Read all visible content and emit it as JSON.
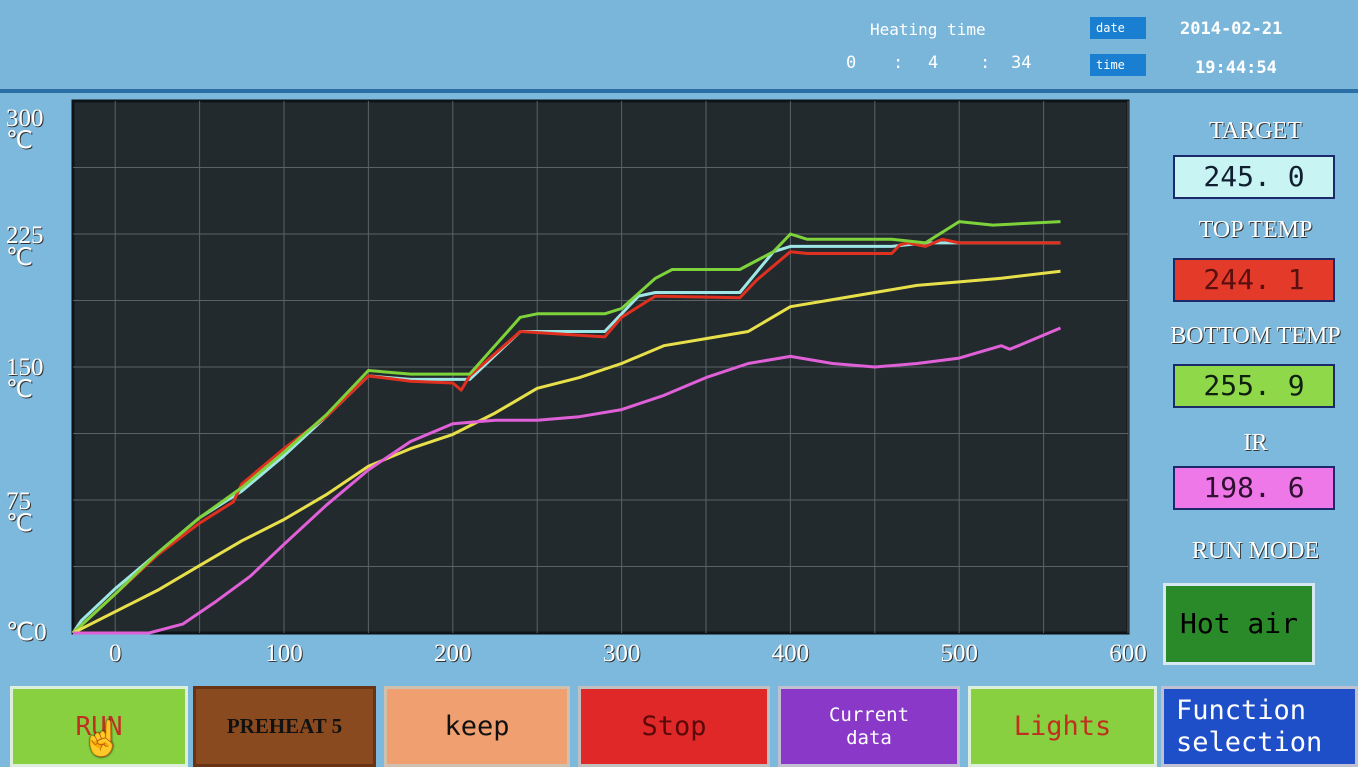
{
  "header": {
    "heating_label": "Heating time",
    "heating_h": "0",
    "heating_sep1": ":",
    "heating_m": "4",
    "heating_sep2": ":",
    "heating_s": "34",
    "date_tag": "date",
    "date_value": "2014-02-21",
    "time_tag": "time",
    "time_value": "19:44:54"
  },
  "chart_data": {
    "type": "line",
    "y_ticks": [
      {
        "label": "300",
        "unit": "℃"
      },
      {
        "label": "225",
        "unit": "℃"
      },
      {
        "label": "150",
        "unit": "℃"
      },
      {
        "label": "75",
        "unit": "℃"
      },
      {
        "label": "0",
        "unit": "℃"
      }
    ],
    "x_ticks": [
      "0",
      "100",
      "200",
      "300",
      "400",
      "500",
      "600"
    ],
    "xlim": [
      -25,
      600
    ],
    "ylim": [
      0,
      300
    ],
    "grid": true,
    "series": [
      {
        "key": "target",
        "color": "#9fe6e6",
        "x": [
          -25,
          -20,
          0,
          25,
          50,
          75,
          100,
          125,
          150,
          175,
          200,
          210,
          240,
          290,
          310,
          320,
          370,
          390,
          400,
          410,
          460,
          480,
          490,
          500,
          540,
          560
        ],
        "y": [
          0,
          7,
          25,
          45,
          65,
          80,
          100,
          122,
          145,
          143,
          143,
          143,
          170,
          170,
          190,
          192,
          192,
          215,
          218,
          218,
          218,
          220,
          220,
          220,
          220,
          220
        ]
      },
      {
        "key": "top_temp",
        "color": "#e03020",
        "x": [
          -25,
          0,
          25,
          50,
          70,
          75,
          100,
          125,
          150,
          175,
          200,
          205,
          210,
          240,
          290,
          300,
          320,
          370,
          380,
          400,
          410,
          460,
          465,
          470,
          480,
          490,
          500,
          540,
          560
        ],
        "y": [
          0,
          22,
          44,
          62,
          74,
          84,
          104,
          122,
          145,
          142,
          141,
          137,
          145,
          170,
          167,
          178,
          190,
          189,
          199,
          215,
          214,
          214,
          219,
          220,
          218,
          222,
          220,
          220,
          220
        ]
      },
      {
        "key": "bottom_temp",
        "color": "#7ed23a",
        "x": [
          -25,
          0,
          25,
          50,
          75,
          100,
          125,
          150,
          175,
          200,
          210,
          240,
          250,
          290,
          300,
          320,
          330,
          370,
          390,
          400,
          410,
          460,
          480,
          500,
          520,
          560
        ],
        "y": [
          0,
          22,
          45,
          65,
          82,
          102,
          123,
          148,
          146,
          146,
          146,
          178,
          180,
          180,
          183,
          200,
          205,
          205,
          215,
          225,
          222,
          222,
          220,
          232,
          230,
          232
        ]
      },
      {
        "key": "ir_proxy",
        "color": "#e8e04a",
        "x": [
          -25,
          0,
          25,
          50,
          75,
          100,
          125,
          150,
          175,
          200,
          225,
          250,
          275,
          300,
          325,
          350,
          375,
          400,
          425,
          450,
          475,
          500,
          525,
          560
        ],
        "y": [
          0,
          12,
          24,
          38,
          52,
          64,
          78,
          94,
          104,
          112,
          124,
          138,
          144,
          152,
          162,
          166,
          170,
          184,
          188,
          192,
          196,
          198,
          200,
          204
        ]
      },
      {
        "key": "ir",
        "color": "#e060d8",
        "x": [
          -25,
          -10,
          20,
          40,
          60,
          80,
          100,
          125,
          150,
          175,
          200,
          225,
          250,
          275,
          300,
          325,
          350,
          375,
          400,
          425,
          450,
          475,
          500,
          525,
          530,
          560
        ],
        "y": [
          0,
          0,
          0,
          5,
          18,
          32,
          50,
          72,
          92,
          108,
          118,
          120,
          120,
          122,
          126,
          134,
          144,
          152,
          156,
          152,
          150,
          152,
          155,
          162,
          160,
          172
        ]
      }
    ]
  },
  "panel": {
    "target_label": "TARGET",
    "target_value": "245. 0",
    "top_label": "TOP TEMP",
    "top_value": "244. 1",
    "bottom_label": "BOTTOM TEMP",
    "bottom_value": "255. 9",
    "ir_label": "IR",
    "ir_value": "198. 6",
    "mode_label": "RUN MODE",
    "mode_value": "Hot air"
  },
  "buttons": {
    "run": "RUN",
    "preheat": "PREHEAT 5",
    "keep": "keep",
    "stop": "Stop",
    "current_1": "Current",
    "current_2": "data",
    "lights": "Lights",
    "function_1": "Function",
    "function_2": "selection"
  },
  "colors": {
    "target": "#9fe6e6",
    "top": "#e03020",
    "bottom": "#7ed23a",
    "ir": "#e060d8",
    "plot_bg": "#222a2d"
  }
}
